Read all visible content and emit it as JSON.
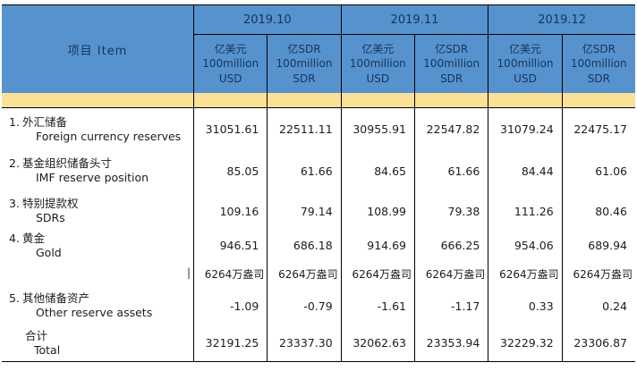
{
  "colors": {
    "header_blue": "#5692CD",
    "band_yellow": "#FBE198",
    "header_text": "#16365D",
    "body_text": "#1c1c1c",
    "border": "#000000"
  },
  "table": {
    "item_header": "项目  Item",
    "periods": [
      "2019.10",
      "2019.11",
      "2019.12"
    ],
    "units": {
      "usd": [
        "亿美元",
        "100million",
        "USD"
      ],
      "sdr": [
        "亿SDR",
        "100million",
        "SDR"
      ]
    },
    "rows": [
      {
        "type": "data",
        "num": "1.",
        "label_cn": "外汇储备",
        "label_en": "Foreign currency reserves",
        "values": [
          "31051.61",
          "22511.11",
          "30955.91",
          "22547.82",
          "31079.24",
          "22475.17"
        ]
      },
      {
        "type": "data",
        "num": "2.",
        "label_cn": "基金组织储备头寸",
        "label_en": "IMF reserve position",
        "values": [
          "85.05",
          "61.66",
          "84.65",
          "61.66",
          "84.44",
          "61.06"
        ]
      },
      {
        "type": "data",
        "num": "3.",
        "label_cn": "特别提款权",
        "label_en": "SDRs",
        "values": [
          "109.16",
          "79.14",
          "108.99",
          "79.38",
          "111.26",
          "80.46"
        ]
      },
      {
        "type": "data",
        "num": "4.",
        "label_cn": "黄金",
        "label_en": "Gold",
        "values": [
          "946.51",
          "686.18",
          "914.69",
          "666.25",
          "954.06",
          "689.94"
        ]
      },
      {
        "type": "ounces",
        "tick": "|",
        "values": [
          "6264万盎司",
          "6264万盎司",
          "6264万盎司",
          "6264万盎司",
          "6264万盎司",
          "6264万盎司"
        ]
      },
      {
        "type": "data",
        "num": "5.",
        "label_cn": "其他储备资产",
        "label_en": "Other reserve assets",
        "values": [
          "-1.09",
          "-0.79",
          "-1.61",
          "-1.17",
          "0.33",
          "0.24"
        ]
      },
      {
        "type": "total",
        "num": "",
        "label_cn": "合计",
        "label_en": "Total",
        "values": [
          "32191.25",
          "23337.30",
          "32062.63",
          "23353.94",
          "32229.32",
          "23306.87"
        ]
      }
    ]
  }
}
